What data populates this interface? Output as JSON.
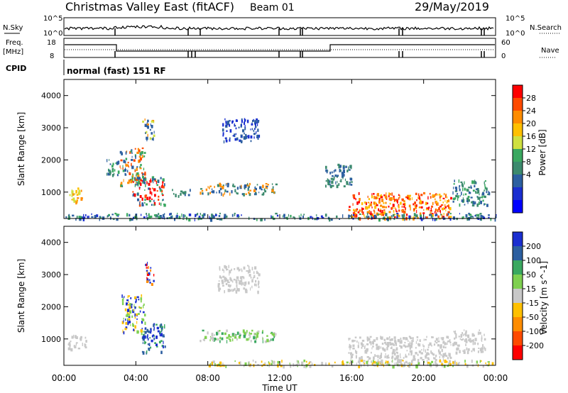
{
  "header": {
    "title": "Christmas Valley East (fitACF)",
    "beam": "Beam 01",
    "date": "29/May/2019"
  },
  "top_panels": {
    "nsky_label": "N.Sky",
    "nsearch_label": "N.Search",
    "noise_ticks": [
      "10^5",
      "10^0"
    ],
    "freq_label": "Freq.",
    "freq_unit": "[MHz]",
    "freq_ticks": [
      "18",
      "8"
    ],
    "nave_label": "Nave",
    "nave_ticks": [
      "60",
      "0"
    ],
    "cpid_label": "CPID",
    "cpid_value": "normal (fast) 151 RF"
  },
  "chart_data": [
    {
      "type": "heatmap",
      "name": "power",
      "ylabel": "Slant Range [km]",
      "xlabel": "",
      "colorbar_label": "Power [dB]",
      "colorbar_ticks": [
        "28",
        "24",
        "20",
        "16",
        "12",
        "8",
        "4"
      ],
      "colorbar_colors": [
        "#ff0000",
        "#ff4a00",
        "#ff8c00",
        "#ffc000",
        "#cfe040",
        "#3aa860",
        "#3c8a6e",
        "#2c5fa0",
        "#1a2ed0",
        "#0000ff"
      ],
      "ylim": [
        180,
        4500
      ],
      "yticks": [
        "4000",
        "3000",
        "2000",
        "1000"
      ],
      "xlim": [
        "00:00",
        "24:00"
      ],
      "patches": [
        {
          "t0": 0.2,
          "t1": 1.1,
          "r0": 700,
          "r1": 1150,
          "c": [
            "#ff8c00",
            "#ffc000",
            "#cfe040"
          ]
        },
        {
          "t0": 2.3,
          "t1": 3.0,
          "r0": 1550,
          "r1": 2100,
          "c": [
            "#2c5fa0",
            "#3aa860",
            "#3c8a6e"
          ]
        },
        {
          "t0": 3.1,
          "t1": 4.5,
          "r0": 1200,
          "r1": 2400,
          "c": [
            "#ff8c00",
            "#ff4a00",
            "#3aa860",
            "#2c5fa0"
          ]
        },
        {
          "t0": 3.8,
          "t1": 5.6,
          "r0": 600,
          "r1": 1500,
          "c": [
            "#ff4a00",
            "#ff0000",
            "#3aa860",
            "#2c5fa0"
          ]
        },
        {
          "t0": 4.3,
          "t1": 5.0,
          "r0": 2600,
          "r1": 3300,
          "c": [
            "#ff8c00",
            "#cfe040",
            "#2c5fa0"
          ]
        },
        {
          "t0": 6.0,
          "t1": 7.0,
          "r0": 900,
          "r1": 1100,
          "c": [
            "#3c8a6e",
            "#2c5fa0"
          ]
        },
        {
          "t0": 7.5,
          "t1": 11.8,
          "r0": 950,
          "r1": 1300,
          "c": [
            "#3c8a6e",
            "#2c5fa0",
            "#ff8c00"
          ]
        },
        {
          "t0": 8.8,
          "t1": 10.8,
          "r0": 2600,
          "r1": 3300,
          "c": [
            "#2c5fa0",
            "#1a2ed0"
          ]
        },
        {
          "t0": 14.5,
          "t1": 16.0,
          "r0": 1200,
          "r1": 1900,
          "c": [
            "#2c5fa0",
            "#3c8a6e"
          ]
        },
        {
          "t0": 15.8,
          "t1": 21.5,
          "r0": 200,
          "r1": 1000,
          "c": [
            "#ff0000",
            "#ff4a00",
            "#ff8c00",
            "#ffc000"
          ]
        },
        {
          "t0": 21.6,
          "t1": 23.6,
          "r0": 600,
          "r1": 1400,
          "c": [
            "#3c8a6e",
            "#2c5fa0",
            "#3aa860"
          ]
        },
        {
          "t0": 0.0,
          "t1": 24.0,
          "r0": 180,
          "r1": 360,
          "c": [
            "#2c5fa0",
            "#3c8a6e",
            "#1a2ed0",
            "#3aa860"
          ]
        }
      ]
    },
    {
      "type": "heatmap",
      "name": "velocity",
      "ylabel": "Slant Range [km]",
      "xlabel": "Time UT",
      "colorbar_label": "Velocity [m s^-1]",
      "colorbar_ticks": [
        "200",
        "100",
        "50",
        "15",
        "-15",
        "-50",
        "-100",
        "-200"
      ],
      "colorbar_colors": [
        "#1a2ed0",
        "#2c5fa0",
        "#3aa860",
        "#7fd050",
        "#c8c8c8",
        "#ffc000",
        "#ff8c00",
        "#ff4a00",
        "#ff0000"
      ],
      "ylim": [
        180,
        4500
      ],
      "yticks": [
        "4000",
        "3000",
        "2000",
        "1000"
      ],
      "xlim": [
        "00:00",
        "24:00"
      ],
      "xticks": [
        "00:00",
        "04:00",
        "08:00",
        "12:00",
        "16:00",
        "20:00",
        "00:00"
      ],
      "patches": [
        {
          "t0": 0.2,
          "t1": 1.2,
          "r0": 700,
          "r1": 1150,
          "c": [
            "#c8c8c8"
          ]
        },
        {
          "t0": 3.2,
          "t1": 4.5,
          "r0": 1200,
          "r1": 2400,
          "c": [
            "#ffc000",
            "#1a2ed0",
            "#7fd050"
          ]
        },
        {
          "t0": 4.3,
          "t1": 5.6,
          "r0": 600,
          "r1": 1500,
          "c": [
            "#1a2ed0",
            "#2c5fa0",
            "#3aa860"
          ]
        },
        {
          "t0": 4.5,
          "t1": 5.0,
          "r0": 2700,
          "r1": 3400,
          "c": [
            "#ff0000",
            "#1a2ed0",
            "#ff8c00"
          ]
        },
        {
          "t0": 7.5,
          "t1": 11.8,
          "r0": 950,
          "r1": 1300,
          "c": [
            "#3aa860",
            "#7fd050",
            "#c8c8c8"
          ]
        },
        {
          "t0": 8.5,
          "t1": 10.8,
          "r0": 2500,
          "r1": 3300,
          "c": [
            "#c8c8c8"
          ]
        },
        {
          "t0": 15.8,
          "t1": 21.5,
          "r0": 200,
          "r1": 1100,
          "c": [
            "#c8c8c8"
          ]
        },
        {
          "t0": 21.6,
          "t1": 23.4,
          "r0": 600,
          "r1": 1300,
          "c": [
            "#c8c8c8"
          ]
        },
        {
          "t0": 8.0,
          "t1": 24.0,
          "r0": 180,
          "r1": 360,
          "c": [
            "#ffc000",
            "#c8c8c8",
            "#7fd050"
          ]
        }
      ]
    }
  ]
}
